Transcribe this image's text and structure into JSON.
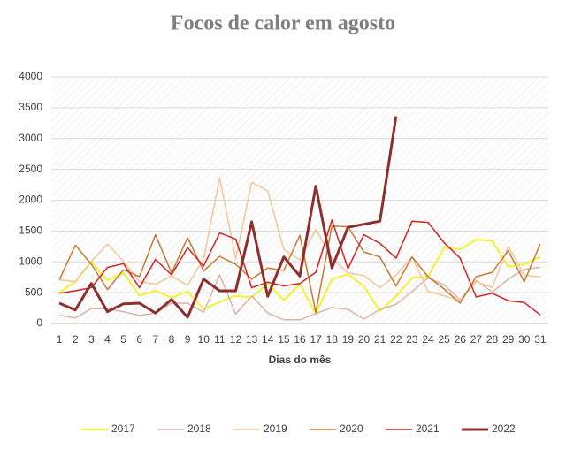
{
  "chart_data": {
    "type": "line",
    "title": "Focos de calor em agosto",
    "x_label": "Dias do mês",
    "categories": [
      1,
      2,
      3,
      4,
      5,
      6,
      7,
      8,
      9,
      10,
      11,
      12,
      13,
      14,
      15,
      16,
      17,
      18,
      19,
      20,
      21,
      22,
      23,
      24,
      25,
      26,
      27,
      28,
      29,
      30,
      31
    ],
    "ylim": [
      0,
      4000
    ],
    "yticks": [
      0,
      500,
      1000,
      1500,
      2000,
      2500,
      3000,
      3500,
      4000
    ],
    "grid": true,
    "legend": "bottom",
    "series": [
      {
        "name": "2017",
        "color": "#f2f230",
        "width": 2,
        "values": [
          500,
          680,
          1000,
          700,
          820,
          450,
          530,
          420,
          520,
          230,
          350,
          450,
          420,
          650,
          380,
          640,
          160,
          720,
          800,
          600,
          200,
          440,
          740,
          760,
          1230,
          1200,
          1360,
          1340,
          920,
          960,
          1080
        ]
      },
      {
        "name": "2018",
        "color": "#d9b4a8",
        "width": 1.5,
        "values": [
          130,
          90,
          240,
          240,
          190,
          130,
          170,
          330,
          330,
          180,
          790,
          150,
          450,
          170,
          60,
          60,
          160,
          260,
          230,
          70,
          230,
          310,
          520,
          740,
          630,
          380,
          700,
          510,
          720,
          880,
          910
        ]
      },
      {
        "name": "2019",
        "color": "#f2c698",
        "width": 1.5,
        "values": [
          710,
          680,
          1010,
          1290,
          1010,
          680,
          640,
          770,
          620,
          1050,
          2360,
          1050,
          2290,
          2150,
          1200,
          1030,
          1530,
          1060,
          820,
          780,
          580,
          780,
          1080,
          520,
          450,
          370,
          680,
          580,
          1250,
          780,
          760
        ]
      },
      {
        "name": "2020",
        "color": "#c67a30",
        "width": 1.5,
        "values": [
          710,
          1270,
          960,
          550,
          870,
          760,
          1440,
          820,
          1390,
          850,
          1090,
          960,
          720,
          900,
          860,
          1430,
          180,
          1580,
          1570,
          1160,
          1080,
          610,
          1080,
          760,
          560,
          330,
          760,
          830,
          1180,
          680,
          1290
        ]
      },
      {
        "name": "2021",
        "color": "#d42222",
        "width": 1.5,
        "values": [
          490,
          530,
          580,
          910,
          970,
          580,
          1040,
          790,
          1230,
          930,
          1470,
          1370,
          580,
          670,
          610,
          650,
          830,
          1680,
          890,
          1440,
          1300,
          1060,
          1660,
          1640,
          1310,
          1060,
          430,
          490,
          370,
          340,
          140
        ]
      },
      {
        "name": "2022",
        "color": "#8e2f2f",
        "width": 3,
        "values": [
          330,
          220,
          650,
          190,
          320,
          330,
          170,
          390,
          100,
          720,
          530,
          530,
          1650,
          440,
          1080,
          770,
          2230,
          900,
          1560,
          1610,
          1660,
          3360,
          null,
          null,
          null,
          null,
          null,
          null,
          null,
          null,
          null
        ]
      }
    ]
  }
}
